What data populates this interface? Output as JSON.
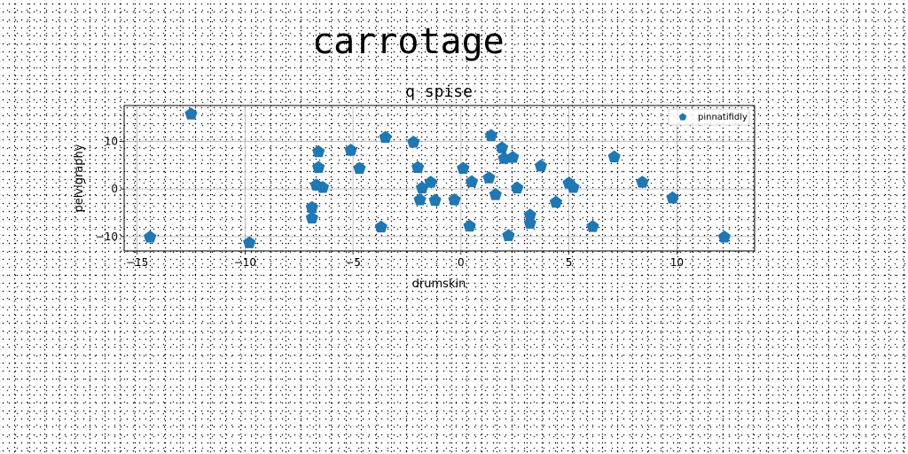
{
  "page": {
    "title": "carrotage"
  },
  "chart_data": {
    "type": "scatter",
    "title": "q spise",
    "xlabel": "drumskin",
    "ylabel": "pelvigraphy",
    "xlim": [
      -15.6,
      13.6
    ],
    "ylim": [
      -13,
      17.5
    ],
    "xticks": [
      -15,
      -10,
      -5,
      0,
      5,
      10
    ],
    "yticks": [
      -10,
      0,
      10
    ],
    "grid": true,
    "legend_position": "top-right",
    "marker": "pentagon",
    "colors": {
      "series": "#1f77b4"
    },
    "series": [
      {
        "name": "pinnatifidly",
        "points": [
          [
            -12.5,
            15.7
          ],
          [
            -14.4,
            -10.1
          ],
          [
            -9.8,
            -11.3
          ],
          [
            -6.6,
            7.8
          ],
          [
            -6.6,
            4.5
          ],
          [
            -6.7,
            0.8
          ],
          [
            -6.4,
            0.3
          ],
          [
            -6.9,
            -3.9
          ],
          [
            -6.9,
            -6.1
          ],
          [
            -5.1,
            8.1
          ],
          [
            -4.7,
            4.3
          ],
          [
            -3.5,
            10.8
          ],
          [
            -3.7,
            -8.0
          ],
          [
            -2.2,
            9.8
          ],
          [
            -2.0,
            4.5
          ],
          [
            -1.8,
            0.2
          ],
          [
            -1.9,
            -2.3
          ],
          [
            -1.4,
            1.4
          ],
          [
            -1.2,
            -2.4
          ],
          [
            -0.3,
            -2.3
          ],
          [
            0.1,
            4.3
          ],
          [
            0.5,
            1.5
          ],
          [
            0.4,
            -7.8
          ],
          [
            1.4,
            11.2
          ],
          [
            1.3,
            2.3
          ],
          [
            1.6,
            -1.2
          ],
          [
            1.9,
            8.6
          ],
          [
            2.0,
            6.4
          ],
          [
            2.4,
            6.6
          ],
          [
            2.6,
            0.2
          ],
          [
            2.2,
            -9.8
          ],
          [
            3.2,
            -5.5
          ],
          [
            3.2,
            -7.2
          ],
          [
            3.7,
            4.8
          ],
          [
            4.4,
            -2.8
          ],
          [
            5.0,
            1.2
          ],
          [
            5.2,
            0.3
          ],
          [
            6.1,
            -7.9
          ],
          [
            7.1,
            6.7
          ],
          [
            8.4,
            1.4
          ],
          [
            9.8,
            -1.9
          ],
          [
            12.2,
            -10.1
          ]
        ]
      }
    ]
  }
}
